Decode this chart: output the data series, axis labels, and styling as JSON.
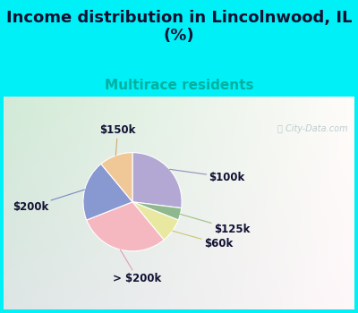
{
  "title": "Income distribution in Lincolnwood, IL\n(%)",
  "subtitle": "Multirace residents",
  "labels": [
    "$100k",
    "$125k",
    "$60k",
    "> $200k",
    "$200k",
    "$150k"
  ],
  "sizes": [
    27,
    4,
    8,
    30,
    20,
    11
  ],
  "colors": [
    "#b3a8d4",
    "#8fb88f",
    "#e8e8a0",
    "#f5b8c0",
    "#8898d0",
    "#f0c898"
  ],
  "title_fontsize": 13,
  "subtitle_fontsize": 11,
  "subtitle_color": "#00b0a0",
  "bg_top": "#00f0f8",
  "label_fontsize": 8.5,
  "watermark": "City-Data.com"
}
